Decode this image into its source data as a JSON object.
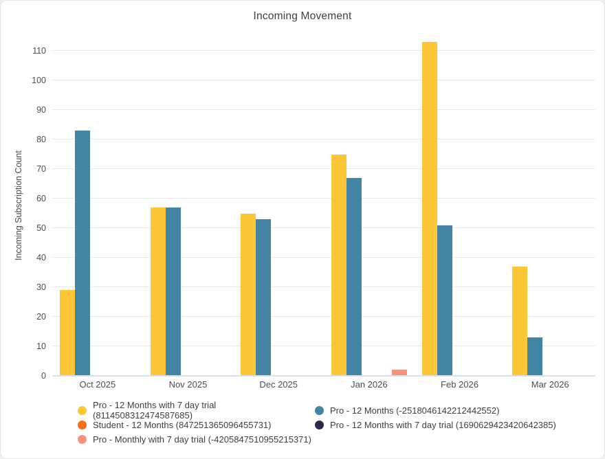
{
  "chart_data": {
    "type": "bar",
    "title": "Incoming Movement",
    "xlabel": "",
    "ylabel": "Incoming Subscription Count",
    "ylim": [
      0,
      115
    ],
    "yticks": [
      0,
      10,
      20,
      30,
      40,
      50,
      60,
      70,
      80,
      90,
      100,
      110
    ],
    "grid": true,
    "legend_position": "bottom",
    "categories": [
      "Oct 2025",
      "Nov 2025",
      "Dec 2025",
      "Jan 2026",
      "Feb 2026",
      "Mar 2026"
    ],
    "series": [
      {
        "name": "Pro - 12 Months with 7 day trial (8114508312474587685)",
        "color": "#FDC637",
        "values": [
          29,
          57,
          55,
          75,
          113,
          37
        ]
      },
      {
        "name": "Pro - 12 Months (-2518046142212442552)",
        "color": "#4383A4",
        "values": [
          83,
          57,
          53,
          67,
          51,
          13
        ]
      },
      {
        "name": "Student - 12 Months (847251365096455731)",
        "color": "#F3701E",
        "values": [
          0,
          0,
          0,
          0,
          0,
          0
        ]
      },
      {
        "name": "Pro - 12 Months with 7 day trial (1690629423420642385)",
        "color": "#2E2A4D",
        "values": [
          0,
          0,
          0,
          0,
          0,
          0
        ]
      },
      {
        "name": "Pro - Monthly with 7 day trial (-4205847510955215371)",
        "color": "#F7917B",
        "values": [
          0,
          0,
          0,
          2,
          0,
          0
        ]
      }
    ]
  }
}
